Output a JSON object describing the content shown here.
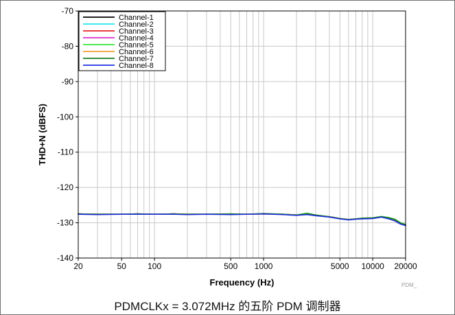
{
  "chart_data": {
    "type": "line",
    "xlabel": "Frequency (Hz)",
    "ylabel": "THD+N (dBFS)",
    "xscale": "log",
    "xlim": [
      20,
      20000
    ],
    "ylim": [
      -140,
      -70
    ],
    "x_tick_labels": [
      "20",
      "50",
      "100",
      "500",
      "1000",
      "5000",
      "10000",
      "20000"
    ],
    "y_tick_labels": [
      "-70",
      "-80",
      "-90",
      "-100",
      "-110",
      "-120",
      "-130",
      "-140"
    ],
    "grid": true,
    "legend_position": "top-left",
    "x": [
      20,
      30,
      50,
      70,
      100,
      150,
      200,
      300,
      500,
      700,
      1000,
      1500,
      2000,
      2500,
      3000,
      4000,
      5000,
      6000,
      7000,
      8000,
      10000,
      12000,
      14000,
      16000,
      18000,
      20000
    ],
    "series": [
      {
        "name": "Channel-1",
        "color": "#000000",
        "values": [
          -127.5,
          -127.6,
          -127.6,
          -127.5,
          -127.6,
          -127.5,
          -127.6,
          -127.6,
          -127.6,
          -127.6,
          -127.5,
          -127.6,
          -127.8,
          -127.6,
          -127.9,
          -128.3,
          -128.8,
          -129.1,
          -128.9,
          -128.8,
          -128.7,
          -128.4,
          -128.8,
          -129.3,
          -130.2,
          -130.6
        ]
      },
      {
        "name": "Channel-2",
        "color": "#22e6ee",
        "values": [
          -127.6,
          -127.6,
          -127.6,
          -127.5,
          -127.6,
          -127.5,
          -127.6,
          -127.6,
          -127.6,
          -127.6,
          -127.5,
          -127.6,
          -127.8,
          -127.6,
          -127.9,
          -128.3,
          -128.8,
          -129.1,
          -128.9,
          -128.8,
          -128.7,
          -128.4,
          -128.8,
          -129.3,
          -130.3,
          -130.6
        ]
      },
      {
        "name": "Channel-3",
        "color": "#e8202a",
        "values": [
          -127.5,
          -127.6,
          -127.6,
          -127.5,
          -127.6,
          -127.5,
          -127.6,
          -127.6,
          -127.6,
          -127.6,
          -127.5,
          -127.6,
          -127.8,
          -127.6,
          -127.9,
          -128.3,
          -128.8,
          -129.1,
          -128.9,
          -128.8,
          -128.7,
          -128.4,
          -128.8,
          -129.3,
          -130.2,
          -130.6
        ]
      },
      {
        "name": "Channel-4",
        "color": "#d92fd0",
        "values": [
          -127.5,
          -127.6,
          -127.6,
          -127.5,
          -127.6,
          -127.5,
          -127.6,
          -127.6,
          -127.6,
          -127.6,
          -127.5,
          -127.6,
          -127.8,
          -127.6,
          -127.9,
          -128.3,
          -128.8,
          -129.1,
          -128.9,
          -128.8,
          -128.7,
          -128.4,
          -128.8,
          -129.3,
          -130.2,
          -130.6
        ]
      },
      {
        "name": "Channel-5",
        "color": "#33e63a",
        "values": [
          -127.5,
          -127.6,
          -127.6,
          -127.5,
          -127.6,
          -127.5,
          -127.6,
          -127.6,
          -127.5,
          -127.6,
          -127.4,
          -127.6,
          -127.8,
          -127.3,
          -127.8,
          -128.3,
          -128.8,
          -129.1,
          -128.9,
          -128.7,
          -128.6,
          -128.2,
          -128.5,
          -129.0,
          -130.0,
          -130.5
        ]
      },
      {
        "name": "Channel-6",
        "color": "#f2a030",
        "values": [
          -127.5,
          -127.6,
          -127.6,
          -127.5,
          -127.6,
          -127.5,
          -127.6,
          -127.6,
          -127.6,
          -127.6,
          -127.5,
          -127.6,
          -127.8,
          -127.6,
          -127.9,
          -128.3,
          -128.8,
          -129.1,
          -128.9,
          -128.8,
          -128.7,
          -128.4,
          -128.8,
          -129.3,
          -130.2,
          -130.6
        ]
      },
      {
        "name": "Channel-7",
        "color": "#1f7a22",
        "values": [
          -127.5,
          -127.6,
          -127.6,
          -127.5,
          -127.6,
          -127.5,
          -127.6,
          -127.6,
          -127.5,
          -127.6,
          -127.4,
          -127.6,
          -127.8,
          -127.4,
          -127.8,
          -128.3,
          -128.8,
          -129.1,
          -128.9,
          -128.7,
          -128.6,
          -128.3,
          -128.6,
          -129.1,
          -130.1,
          -130.5
        ]
      },
      {
        "name": "Channel-8",
        "color": "#2030e0",
        "values": [
          -127.6,
          -127.7,
          -127.6,
          -127.6,
          -127.6,
          -127.6,
          -127.7,
          -127.6,
          -127.7,
          -127.6,
          -127.5,
          -127.7,
          -127.9,
          -127.7,
          -128.0,
          -128.4,
          -128.9,
          -129.2,
          -129.0,
          -128.9,
          -128.8,
          -128.4,
          -128.9,
          -129.5,
          -130.4,
          -130.8
        ]
      }
    ]
  },
  "watermark": "PDM_",
  "caption": "PDMCLKx = 3.072MHz 的五阶 PDM 调制器"
}
